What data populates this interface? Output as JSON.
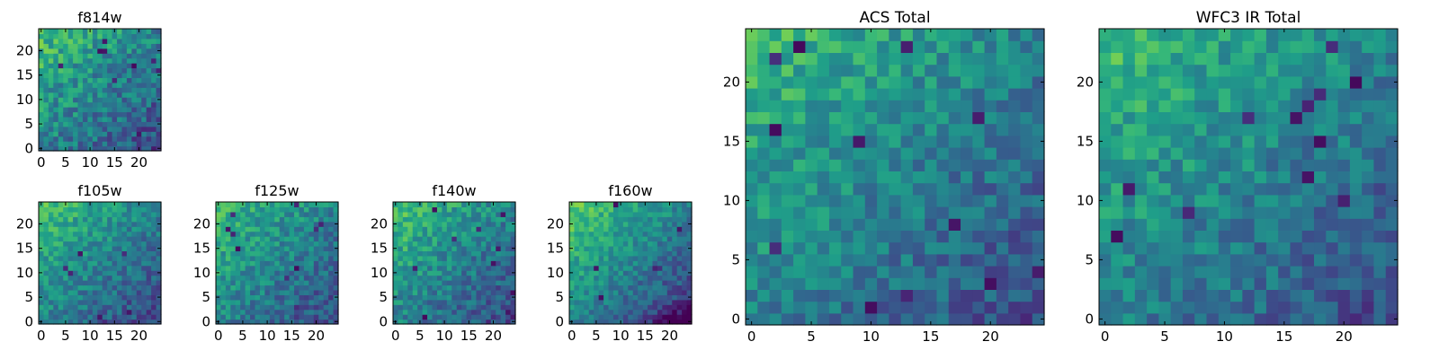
{
  "chart_data": [
    {
      "type": "heatmap",
      "title": "f814w",
      "colormap": "viridis",
      "size": 25,
      "xticks": [
        "0",
        "5",
        "10",
        "15",
        "20"
      ],
      "yticks": [
        "0",
        "5",
        "10",
        "15",
        "20"
      ],
      "xlim": [
        -0.5,
        24.5
      ],
      "ylim": [
        -0.5,
        24.5
      ],
      "gradient_strength": 0.45,
      "noise": 0.35,
      "dark_pixels": 10,
      "dark_corner": 0,
      "seed": 11
    },
    {
      "type": "heatmap",
      "title": "f105w",
      "colormap": "viridis",
      "size": 25,
      "xticks": [
        "0",
        "5",
        "10",
        "15",
        "20"
      ],
      "yticks": [
        "0",
        "5",
        "10",
        "15",
        "20"
      ],
      "xlim": [
        -0.5,
        24.5
      ],
      "ylim": [
        -0.5,
        24.5
      ],
      "gradient_strength": 0.5,
      "noise": 0.28,
      "dark_pixels": 8,
      "dark_corner": 0,
      "seed": 23
    },
    {
      "type": "heatmap",
      "title": "f125w",
      "colormap": "viridis",
      "size": 25,
      "xticks": [
        "0",
        "5",
        "10",
        "15",
        "20"
      ],
      "yticks": [
        "0",
        "5",
        "10",
        "15",
        "20"
      ],
      "xlim": [
        -0.5,
        24.5
      ],
      "ylim": [
        -0.5,
        24.5
      ],
      "gradient_strength": 0.45,
      "noise": 0.3,
      "dark_pixels": 10,
      "dark_corner": 0,
      "seed": 37
    },
    {
      "type": "heatmap",
      "title": "f140w",
      "colormap": "viridis",
      "size": 25,
      "xticks": [
        "0",
        "5",
        "10",
        "15",
        "20"
      ],
      "yticks": [
        "0",
        "5",
        "10",
        "15",
        "20"
      ],
      "xlim": [
        -0.5,
        24.5
      ],
      "ylim": [
        -0.5,
        24.5
      ],
      "gradient_strength": 0.5,
      "noise": 0.3,
      "dark_pixels": 10,
      "dark_corner": 0,
      "seed": 41
    },
    {
      "type": "heatmap",
      "title": "f160w",
      "colormap": "viridis",
      "size": 25,
      "xticks": [
        "0",
        "5",
        "10",
        "15",
        "20"
      ],
      "yticks": [
        "0",
        "5",
        "10",
        "15",
        "20"
      ],
      "xlim": [
        -0.5,
        24.5
      ],
      "ylim": [
        -0.5,
        24.5
      ],
      "gradient_strength": 0.6,
      "noise": 0.25,
      "dark_pixels": 6,
      "dark_corner": 1,
      "seed": 53
    },
    {
      "type": "heatmap",
      "title": "ACS Total",
      "colormap": "viridis",
      "size": 25,
      "xticks": [
        "0",
        "5",
        "10",
        "15",
        "20"
      ],
      "yticks": [
        "0",
        "5",
        "10",
        "15",
        "20"
      ],
      "xlim": [
        -0.5,
        24.5
      ],
      "ylim": [
        -0.5,
        24.5
      ],
      "gradient_strength": 0.45,
      "noise": 0.28,
      "dark_pixels": 12,
      "dark_corner": 0,
      "seed": 67
    },
    {
      "type": "heatmap",
      "title": "WFC3 IR Total",
      "colormap": "viridis",
      "size": 25,
      "xticks": [
        "0",
        "5",
        "10",
        "15",
        "20"
      ],
      "yticks": [
        "0",
        "5",
        "10",
        "15",
        "20"
      ],
      "xlim": [
        -0.5,
        24.5
      ],
      "ylim": [
        -0.5,
        24.5
      ],
      "gradient_strength": 0.45,
      "noise": 0.28,
      "dark_pixels": 12,
      "dark_corner": 0,
      "seed": 79
    }
  ]
}
